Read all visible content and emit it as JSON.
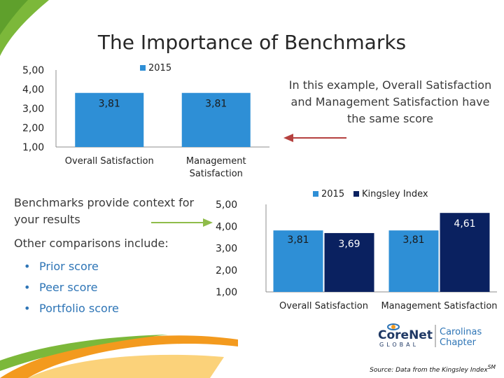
{
  "title": "The Importance of Benchmarks",
  "note": "In this example, Overall Satisfaction and Management Satisfaction have the same score",
  "body": {
    "p1": "Benchmarks provide context for your results",
    "p2": "Other comparisons include:",
    "bullets": [
      "Prior score",
      "Peer score",
      "Portfolio score"
    ]
  },
  "source": {
    "text": "Source: Data from the Kingsley Index",
    "sup": "SM"
  },
  "logo": {
    "main": "CoreNet",
    "sub": "GLOBAL",
    "chapter_line1": "Carolinas",
    "chapter_line2": "Chapter"
  },
  "colors": {
    "bar_2015": "#2e8fd6",
    "bar_kingsley": "#0a2160",
    "arrow": "#b5413f",
    "green_arrow": "#8fbc4a",
    "bullet": "#2e75b6",
    "swoosh_green": "#7cb83a",
    "swoosh_orange": "#f39a1e"
  },
  "chart_data": [
    {
      "type": "bar",
      "categories": [
        "Overall Satisfaction",
        "Management Satisfaction"
      ],
      "series": [
        {
          "name": "2015",
          "values": [
            3.81,
            3.81
          ],
          "labels": [
            "3,81",
            "3,81"
          ]
        }
      ],
      "ylim": [
        1,
        5
      ],
      "yticks": [
        "1,00",
        "2,00",
        "3,00",
        "4,00",
        "5,00"
      ],
      "legend": "top-center",
      "grid": false
    },
    {
      "type": "bar",
      "categories": [
        "Overall Satisfaction",
        "Management Satisfaction"
      ],
      "series": [
        {
          "name": "2015",
          "values": [
            3.81,
            3.81
          ],
          "labels": [
            "3,81",
            "3,81"
          ]
        },
        {
          "name": "Kingsley Index",
          "values": [
            3.69,
            4.61
          ],
          "labels": [
            "3,69",
            "4,61"
          ]
        }
      ],
      "ylim": [
        1,
        5
      ],
      "yticks": [
        "1,00",
        "2,00",
        "3,00",
        "4,00",
        "5,00"
      ],
      "legend": "top-center",
      "grid": false
    }
  ]
}
